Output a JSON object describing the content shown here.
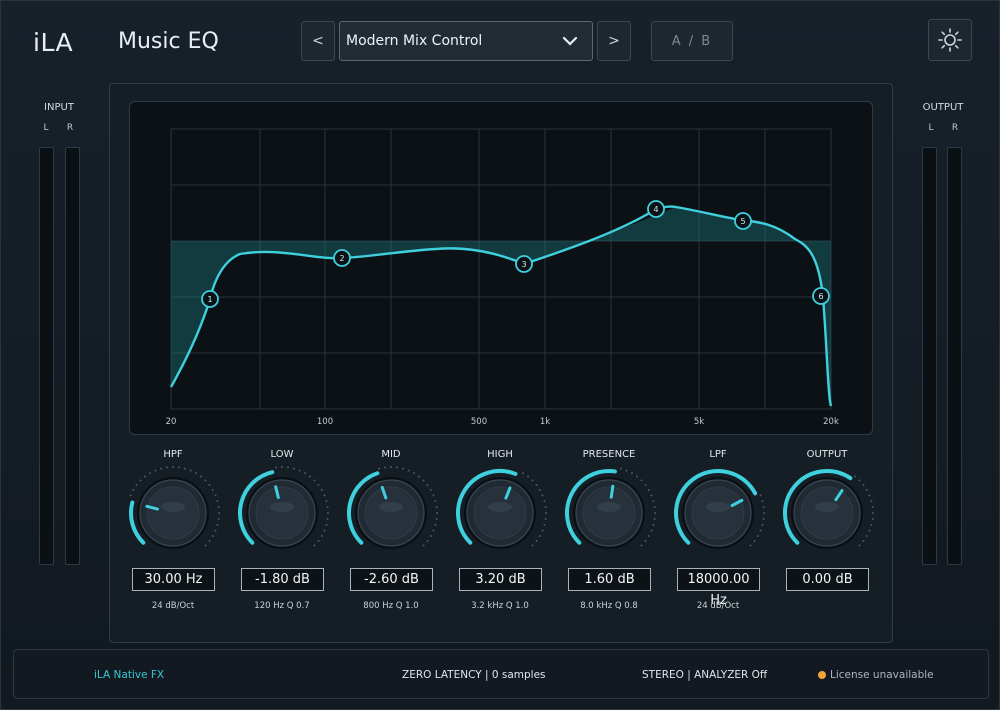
{
  "header": {
    "brand": "iLA",
    "plugin_name": "Music EQ",
    "prev_label": "<",
    "next_label": ">",
    "preset_name": "Modern Mix Control",
    "ab_label": "A / B"
  },
  "meters": {
    "input_title": "INPUT",
    "output_title": "OUTPUT",
    "left_label": "L",
    "right_label": "R"
  },
  "graph": {
    "freq_labels": [
      "20",
      "100",
      "500",
      "1k",
      "5k",
      "20k"
    ],
    "nodes": [
      "1",
      "2",
      "3",
      "4",
      "5",
      "6"
    ],
    "accent_color": "#3fd0de"
  },
  "knobs": [
    {
      "title": "HPF",
      "value": "30.00 Hz",
      "sub": "24 dB/Oct",
      "level": 0.22
    },
    {
      "title": "LOW",
      "value": "-1.80 dB",
      "sub": "120 Hz  Q 0.7",
      "level": 0.45
    },
    {
      "title": "MID",
      "value": "-2.60 dB",
      "sub": "800 Hz  Q 1.0",
      "level": 0.43
    },
    {
      "title": "HIGH",
      "value": "3.20 dB",
      "sub": "3.2 kHz  Q 1.0",
      "level": 0.58
    },
    {
      "title": "PRESENCE",
      "value": "1.60 dB",
      "sub": "8.0 kHz  Q 0.8",
      "level": 0.53
    },
    {
      "title": "LPF",
      "value": "18000.00 Hz",
      "sub": "24 dB/Oct",
      "level": 0.73
    },
    {
      "title": "OUTPUT",
      "value": "0.00 dB",
      "sub": "",
      "level": 0.625
    }
  ],
  "footer": {
    "brand": "iLA  Native FX",
    "latency": "ZERO LATENCY  |  0 samples",
    "stereo": "STEREO  |  ANALYZER Off",
    "license": "License unavailable",
    "license_color": "#f2a23a"
  }
}
